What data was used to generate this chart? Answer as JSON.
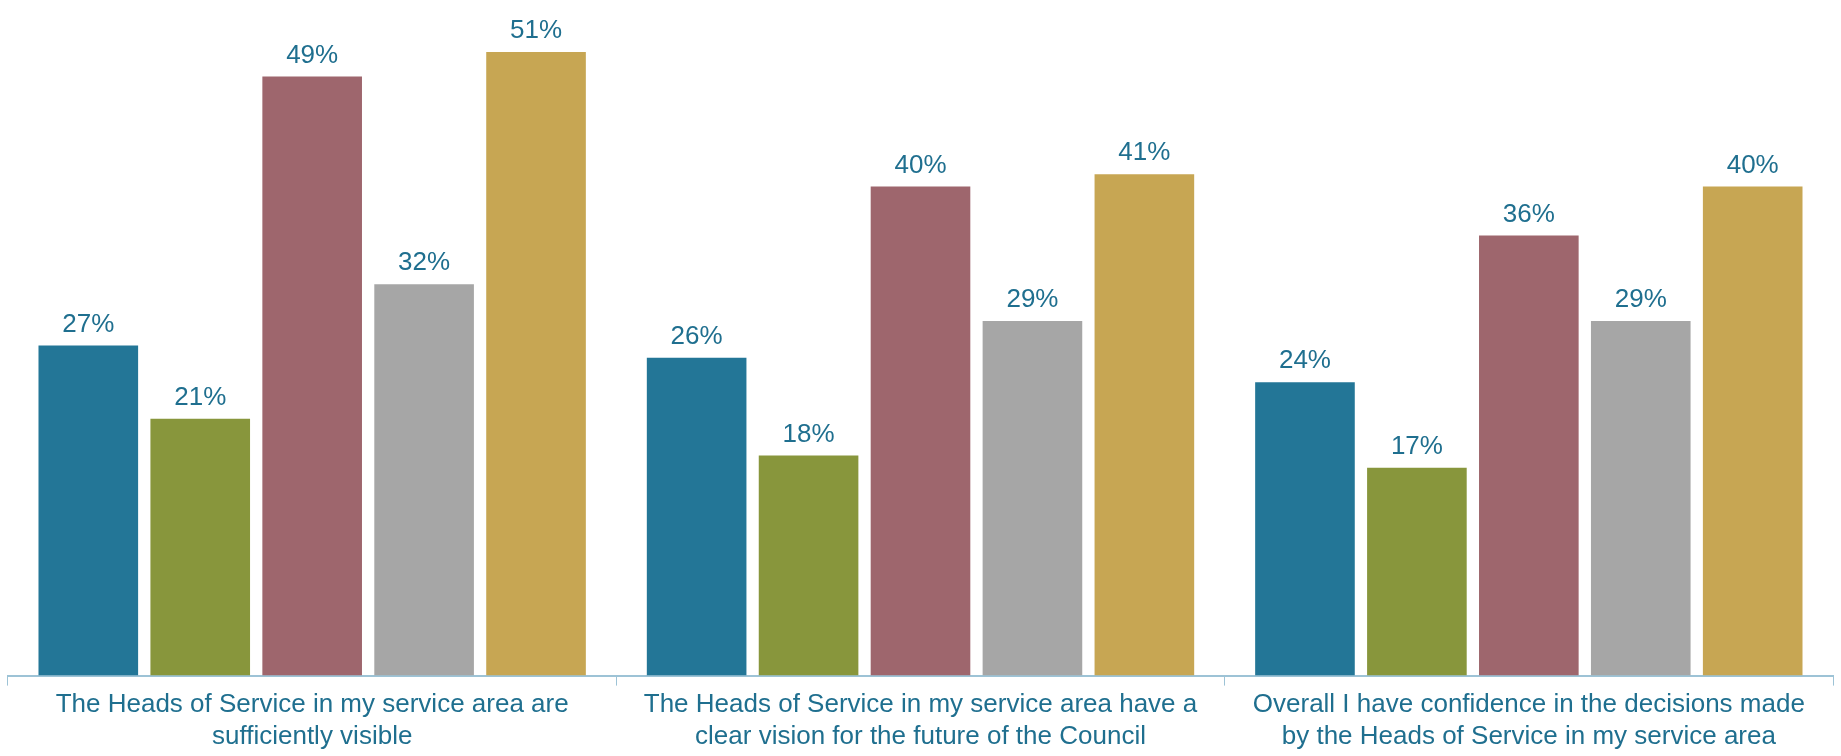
{
  "chart_data": {
    "type": "bar",
    "categories": [
      "The Heads of Service in my service area are sufficiently visible",
      "The Heads of Service in my service area have a clear vision for the future of the Council",
      "Overall I have confidence in the decisions made by the Heads of Service in my service area"
    ],
    "series": [
      {
        "color": "#237697",
        "values": [
          27,
          26,
          24
        ],
        "value_labels": [
          "27%",
          "26%",
          "24%"
        ]
      },
      {
        "color": "#88963c",
        "values": [
          21,
          18,
          17
        ],
        "value_labels": [
          "21%",
          "18%",
          "17%"
        ]
      },
      {
        "color": "#9e666d",
        "values": [
          49,
          40,
          36
        ],
        "value_labels": [
          "49%",
          "40%",
          "36%"
        ]
      },
      {
        "color": "#a6a6a6",
        "values": [
          32,
          29,
          29
        ],
        "value_labels": [
          "32%",
          "29%",
          "29%"
        ]
      },
      {
        "color": "#c7a653",
        "values": [
          51,
          41,
          40
        ],
        "value_labels": [
          "51%",
          "41%",
          "40%"
        ]
      }
    ],
    "legend": false,
    "grid": false
  }
}
